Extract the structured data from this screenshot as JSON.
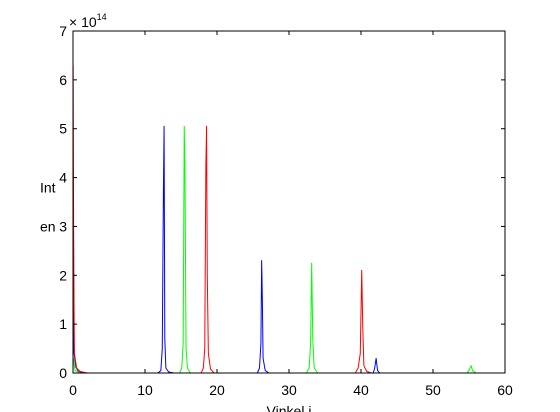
{
  "chart_data": {
    "type": "line",
    "title": "",
    "xlabel": "Vinkel i",
    "ylabel_lines": [
      "Int",
      "en"
    ],
    "exponent_base": "× 10",
    "exponent_power": "14",
    "xlim": [
      0,
      60
    ],
    "ylim": [
      0,
      7
    ],
    "y_scale_factor": 100000000000000.0,
    "x_ticks": [
      0,
      10,
      20,
      30,
      40,
      50,
      60
    ],
    "y_ticks": [
      0,
      1,
      2,
      3,
      4,
      5,
      6,
      7
    ],
    "grid": false,
    "legend": "none",
    "series": [
      {
        "color": "#0000ff",
        "points": [
          [
            0,
            0
          ],
          [
            0.05,
            3.7
          ],
          [
            0.15,
            0.4
          ],
          [
            0.4,
            0.12
          ],
          [
            0.8,
            0.02
          ],
          [
            2,
            0
          ],
          [
            11.8,
            0
          ],
          [
            12.2,
            0.05
          ],
          [
            12.4,
            0.5
          ],
          [
            12.55,
            3.6
          ],
          [
            12.65,
            5.05
          ],
          [
            12.75,
            0.7
          ],
          [
            12.9,
            0.1
          ],
          [
            13.3,
            0.02
          ],
          [
            14,
            0
          ],
          [
            25.6,
            0
          ],
          [
            25.9,
            0.1
          ],
          [
            26.1,
            0.6
          ],
          [
            26.2,
            2.3
          ],
          [
            26.3,
            1.5
          ],
          [
            26.4,
            0.3
          ],
          [
            26.7,
            0.05
          ],
          [
            27.2,
            0
          ],
          [
            41.7,
            0
          ],
          [
            41.9,
            0.1
          ],
          [
            42.1,
            0.3
          ],
          [
            42.3,
            0.05
          ],
          [
            42.6,
            0
          ],
          [
            60,
            0
          ]
        ]
      },
      {
        "color": "#00ff00",
        "points": [
          [
            0,
            0
          ],
          [
            0.05,
            0.3
          ],
          [
            0.3,
            0.05
          ],
          [
            1,
            0
          ],
          [
            14.8,
            0
          ],
          [
            15.1,
            0.1
          ],
          [
            15.3,
            0.6
          ],
          [
            15.45,
            5.05
          ],
          [
            15.55,
            4.15
          ],
          [
            15.7,
            0.5
          ],
          [
            15.9,
            0.1
          ],
          [
            16.3,
            0
          ],
          [
            32.4,
            0
          ],
          [
            32.8,
            0.1
          ],
          [
            33.0,
            0.6
          ],
          [
            33.15,
            2.25
          ],
          [
            33.3,
            0.7
          ],
          [
            33.5,
            0.1
          ],
          [
            34,
            0
          ],
          [
            54.7,
            0
          ],
          [
            55.0,
            0.05
          ],
          [
            55.3,
            0.15
          ],
          [
            55.5,
            0.05
          ],
          [
            56,
            0
          ],
          [
            60,
            0
          ]
        ]
      },
      {
        "color": "#ff0000",
        "points": [
          [
            0,
            0
          ],
          [
            0.02,
            6.3
          ],
          [
            0.1,
            2.1
          ],
          [
            0.2,
            0.4
          ],
          [
            0.5,
            0.1
          ],
          [
            1,
            0.03
          ],
          [
            2,
            0
          ],
          [
            17.8,
            0
          ],
          [
            18.1,
            0.1
          ],
          [
            18.3,
            0.5
          ],
          [
            18.45,
            4.2
          ],
          [
            18.55,
            5.05
          ],
          [
            18.65,
            2.0
          ],
          [
            18.8,
            0.4
          ],
          [
            19.1,
            0.08
          ],
          [
            19.6,
            0
          ],
          [
            39.2,
            0
          ],
          [
            39.6,
            0.1
          ],
          [
            39.9,
            0.4
          ],
          [
            40.1,
            2.1
          ],
          [
            40.25,
            0.9
          ],
          [
            40.4,
            0.15
          ],
          [
            40.8,
            0.03
          ],
          [
            41.5,
            0
          ],
          [
            60,
            0
          ]
        ]
      }
    ]
  }
}
